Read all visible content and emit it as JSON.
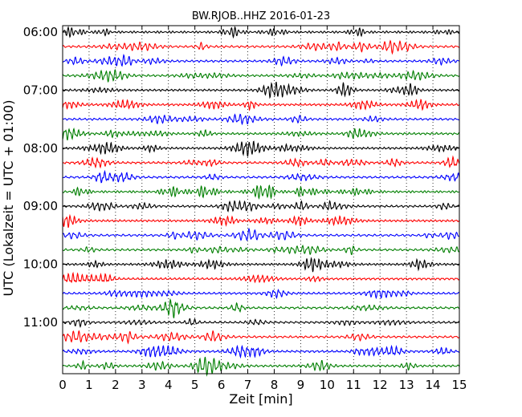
{
  "chart_data": {
    "type": "line",
    "title": "BW.RJOB..HHZ 2016-01-23",
    "xlabel": "Zeit  [min]",
    "ylabel": "UTC (Lokalzeit = UTC + 01:00)",
    "xlim": [
      0,
      15
    ],
    "x_ticks": [
      "0",
      "1",
      "2",
      "3",
      "4",
      "5",
      "6",
      "7",
      "8",
      "9",
      "10",
      "11",
      "12",
      "13",
      "14",
      "15"
    ],
    "y_ticks": [
      "06:00",
      "07:00",
      "08:00",
      "09:00",
      "10:00",
      "11:00"
    ],
    "trace_interval_min": 15,
    "trace_count": 24,
    "trace_colors": [
      "#000000",
      "#ff0000",
      "#0000ff",
      "#007f00"
    ],
    "grid": "x-dotted"
  }
}
